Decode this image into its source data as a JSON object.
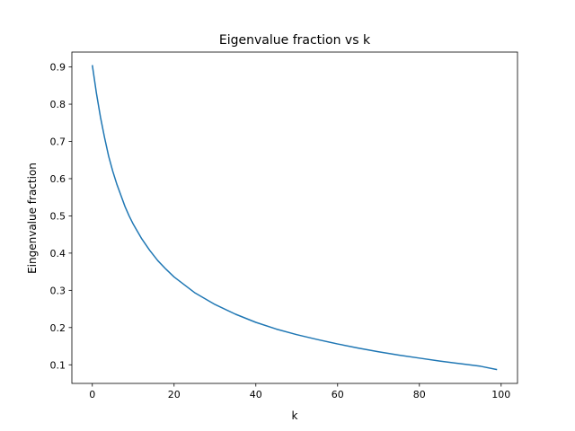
{
  "chart_data": {
    "type": "line",
    "title": "Eigenvalue fraction vs k",
    "xlabel": "k",
    "ylabel": "Eingenvalue fraction",
    "xlim": [
      -5,
      104
    ],
    "ylim": [
      0.05,
      0.94
    ],
    "xticks": [
      0,
      20,
      40,
      60,
      80,
      100
    ],
    "yticks": [
      0.1,
      0.2,
      0.3,
      0.4,
      0.5,
      0.6,
      0.7,
      0.8,
      0.9
    ],
    "ytick_labels": [
      "0.1",
      "0.2",
      "0.3",
      "0.4",
      "0.5",
      "0.6",
      "0.7",
      "0.8",
      "0.9"
    ],
    "grid": false,
    "series": [
      {
        "color": "#1f77b4",
        "x": [
          0,
          1,
          2,
          3,
          4,
          5,
          6,
          7,
          8,
          9,
          10,
          12,
          14,
          16,
          18,
          20,
          25,
          30,
          35,
          40,
          45,
          50,
          55,
          60,
          65,
          70,
          75,
          80,
          85,
          90,
          95,
          99
        ],
        "y": [
          0.905,
          0.83,
          0.765,
          0.71,
          0.66,
          0.62,
          0.585,
          0.555,
          0.525,
          0.5,
          0.478,
          0.44,
          0.408,
          0.38,
          0.357,
          0.336,
          0.294,
          0.262,
          0.236,
          0.214,
          0.196,
          0.181,
          0.168,
          0.156,
          0.145,
          0.135,
          0.126,
          0.118,
          0.11,
          0.103,
          0.096,
          0.087
        ]
      }
    ]
  }
}
